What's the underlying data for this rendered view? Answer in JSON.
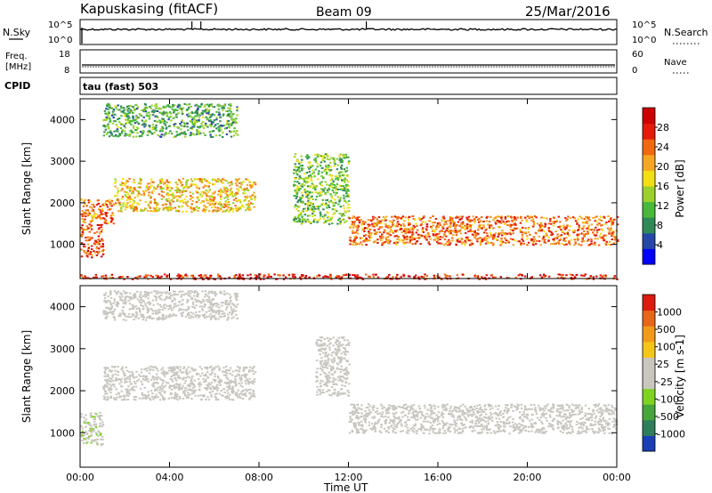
{
  "header": {
    "station": "Kapuskasing (fitACF)",
    "beam": "Beam 09",
    "date": "25/Mar/2016"
  },
  "sky_panel": {
    "left_label": "N.Sky",
    "left_ticks": [
      "10^5",
      "10^0"
    ],
    "right_ticks": [
      "10^5",
      "10^0"
    ],
    "right_label": "N.Search"
  },
  "freq_panel": {
    "left_label_1": "Freq.",
    "left_label_2": "[MHz]",
    "left_ticks": [
      "18",
      "8"
    ],
    "right_ticks": [
      "60",
      "0"
    ],
    "right_label": "Nave"
  },
  "cpid": {
    "label": "CPID",
    "text": "tau (fast) 503"
  },
  "power_panel": {
    "ylabel": "Slant Range [km]",
    "yticks": [
      "4000",
      "3000",
      "2000",
      "1000"
    ],
    "colorbar_label": "Power [dB]",
    "colorbar_ticks": [
      "28",
      "24",
      "20",
      "16",
      "12",
      "8",
      "4"
    ],
    "colors": [
      "#0000ff",
      "#2548a6",
      "#2f8a55",
      "#47b83a",
      "#9ad12c",
      "#f2e014",
      "#f5a623",
      "#f16a0f",
      "#e61a0a",
      "#cc0000"
    ]
  },
  "velocity_panel": {
    "ylabel": "Slant Range [km]",
    "yticks": [
      "4000",
      "3000",
      "2000",
      "1000"
    ],
    "colorbar_label": "Velocity [m s-1]",
    "colorbar_ticks": [
      "1000",
      "500",
      "100",
      "25",
      "-25",
      "-100",
      "-500",
      "-1000"
    ],
    "colors": [
      "#1a3fb5",
      "#2f7d5a",
      "#47a63b",
      "#7ed321",
      "#c8c6bf",
      "#c8c6bf",
      "#f5c518",
      "#f29a1a",
      "#e8661a",
      "#dd1a10"
    ]
  },
  "xaxis": {
    "label": "Time UT",
    "ticks": [
      "00:00",
      "04:00",
      "08:00",
      "12:00",
      "16:00",
      "20:00",
      "00:00"
    ]
  },
  "chart_data": {
    "type": "heatmap",
    "xlabel": "Time UT",
    "ylabel": "Slant Range [km]",
    "xlim_hours": [
      0,
      24
    ],
    "ylim_km": [
      180,
      4500
    ],
    "panels": [
      {
        "name": "Power",
        "unit": "dB",
        "scale": [
          0,
          30
        ],
        "bands": [
          {
            "t": [
              0.0,
              1.0
            ],
            "range_km": [
              700,
              1500
            ],
            "value": 24
          },
          {
            "t": [
              0.0,
              1.5
            ],
            "range_km": [
              1500,
              2100
            ],
            "value": 22
          },
          {
            "t": [
              1.5,
              7.8
            ],
            "range_km": [
              1800,
              2600
            ],
            "value": 18
          },
          {
            "t": [
              1.0,
              7.0
            ],
            "range_km": [
              3600,
              4400
            ],
            "value": 10
          },
          {
            "t": [
              9.5,
              12.0
            ],
            "range_km": [
              1500,
              3200
            ],
            "value": 12
          },
          {
            "t": [
              12.0,
              24.0
            ],
            "range_km": [
              1000,
              1700
            ],
            "value": 22
          },
          {
            "t": [
              0.0,
              24.0
            ],
            "range_km": [
              180,
              300
            ],
            "value": 26
          }
        ]
      },
      {
        "name": "Velocity",
        "unit": "m s-1",
        "scale": [
          -1000,
          1000
        ],
        "bands": [
          {
            "t": [
              0.0,
              1.0
            ],
            "range_km": [
              700,
              1500
            ],
            "value": -150
          },
          {
            "t": [
              1.0,
              7.8
            ],
            "range_km": [
              1800,
              2600
            ],
            "value": 0
          },
          {
            "t": [
              1.0,
              7.0
            ],
            "range_km": [
              3700,
              4400
            ],
            "value": 0
          },
          {
            "t": [
              10.5,
              12.0
            ],
            "range_km": [
              1900,
              3300
            ],
            "value": 60
          },
          {
            "t": [
              12.0,
              24.0
            ],
            "range_km": [
              1000,
              1700
            ],
            "value": 0
          }
        ]
      }
    ],
    "sky_noise": [
      {
        "t": 5.0,
        "v": "10^5"
      },
      {
        "t": 5.4,
        "v": "10^5"
      },
      {
        "t": 12.8,
        "v": "10^5"
      }
    ],
    "frequency_MHz": 10.5
  }
}
